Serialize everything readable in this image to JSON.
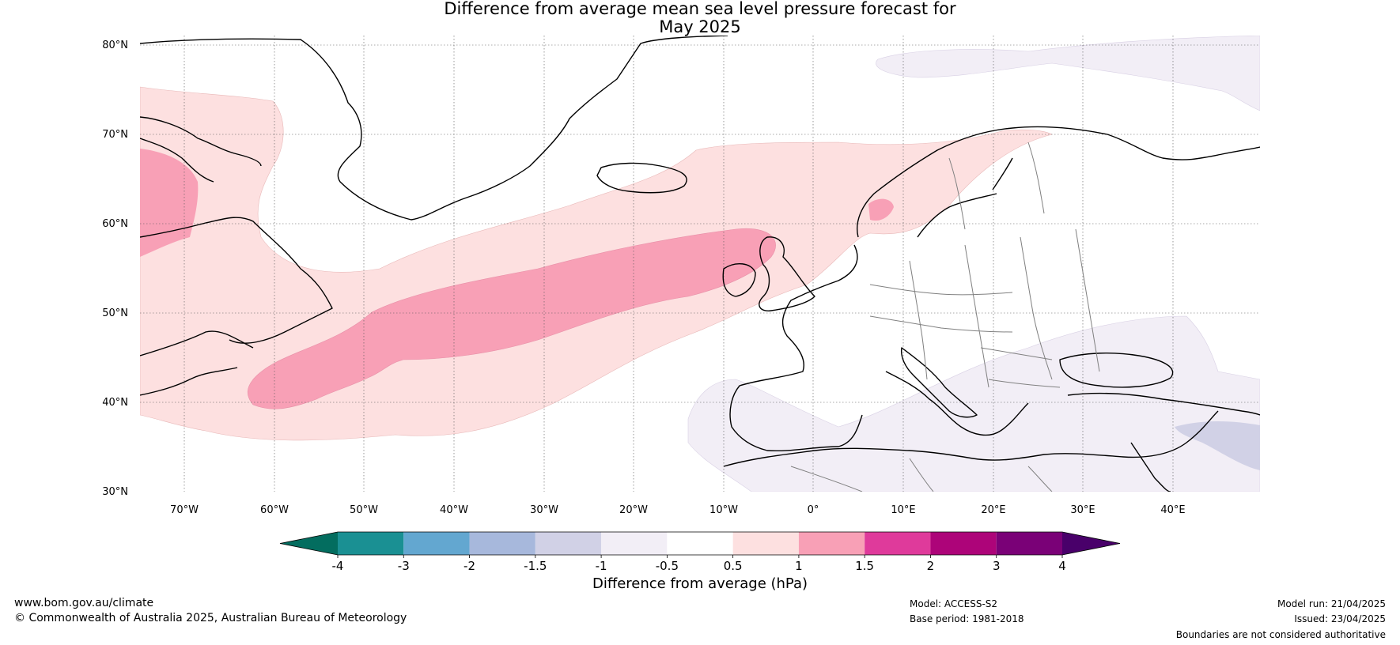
{
  "title_line1": "Difference from average mean sea level pressure forecast for",
  "title_line2": "May 2025",
  "map": {
    "lat_labels": [
      "80°N",
      "70°N",
      "60°N",
      "50°N",
      "40°N",
      "30°N"
    ],
    "lon_labels": [
      "70°W",
      "60°W",
      "50°W",
      "40°W",
      "30°W",
      "20°W",
      "10°W",
      "0°",
      "10°E",
      "20°E",
      "30°E",
      "40°E"
    ],
    "extent": {
      "lon_min": -75,
      "lon_max": 50,
      "lat_min": 30,
      "lat_max": 81
    },
    "colors": {
      "land_outline": "#000000",
      "borders": "#808080",
      "grid": "#555555"
    }
  },
  "colorbar": {
    "tick_labels": [
      "-4",
      "-3",
      "-2",
      "-1.5",
      "-1",
      "-0.5",
      "0.5",
      "1",
      "1.5",
      "2",
      "3",
      "4"
    ],
    "colors": [
      "#036d5f",
      "#1a9093",
      "#63a7d0",
      "#a7b8dc",
      "#d1d1e6",
      "#f2eef6",
      "#ffffff",
      "#fde0e0",
      "#f8a0b6",
      "#df3a9b",
      "#ad0479",
      "#7a0177",
      "#49006a"
    ],
    "label": "Difference from average (hPa)"
  },
  "footer": {
    "website": "www.bom.gov.au/climate",
    "copyright": "© Commonwealth of Australia 2025, Australian Bureau of Meteorology",
    "model": "Model: ACCESS-S2",
    "base_period": "Base period: 1981-2018",
    "model_run": "Model run: 21/04/2025",
    "issued": "Issued: 23/04/2025",
    "disclaimer": "Boundaries are not considered authoritative"
  }
}
